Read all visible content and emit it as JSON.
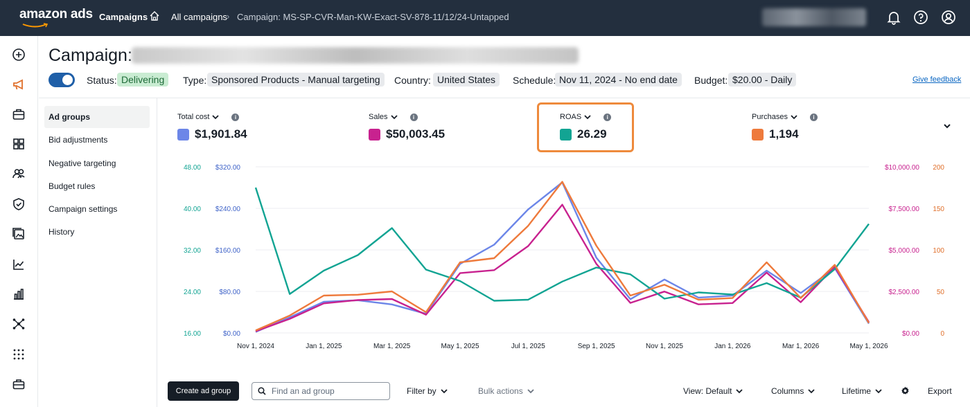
{
  "topbar": {
    "logo": "amazon ads",
    "nav_campaigns": "Campaigns",
    "nav_all": "All campaigns",
    "nav_separator": "›",
    "nav_current": "Campaign: MS-SP-CVR-Man-KW-Exact-SV-878-11/12/24-Untapped",
    "icons": [
      "bell-icon",
      "help-icon",
      "account-icon"
    ]
  },
  "header": {
    "title": "Campaign:",
    "status_label": "Status:",
    "status_value": "Delivering",
    "type_label": "Type:",
    "type_value": "Sponsored Products - Manual targeting",
    "country_label": "Country:",
    "country_value": "United States",
    "schedule_label": "Schedule:",
    "schedule_value": "Nov 11, 2024 - No end date",
    "budget_label": "Budget:",
    "budget_value": "$20.00 - Daily",
    "feedback": "Give feedback"
  },
  "subnav": {
    "items": [
      "Ad groups",
      "Bid adjustments",
      "Negative targeting",
      "Budget rules",
      "Campaign settings",
      "History"
    ]
  },
  "metrics": [
    {
      "label": "Total cost",
      "value": "$1,901.84",
      "color": "#6c86e8"
    },
    {
      "label": "Sales",
      "value": "$50,003.45",
      "color": "#c8228f"
    },
    {
      "label": "ROAS",
      "value": "26.29",
      "color": "#12a493"
    },
    {
      "label": "Purchases",
      "value": "1,194",
      "color": "#ee7a3c"
    }
  ],
  "chart_data": {
    "type": "line",
    "x": [
      "Nov 1, 2024",
      "Dec 1, 2024",
      "Jan 1, 2025",
      "Feb 1, 2025",
      "Mar 1, 2025",
      "Apr 1, 2025",
      "May 1, 2025",
      "Jun 1, 2025",
      "Jul 1, 2025",
      "Aug 1, 2025",
      "Sep 1, 2025",
      "Oct 1, 2025",
      "Nov 1, 2025",
      "Dec 1, 2025",
      "Jan 1, 2026",
      "Feb 1, 2026",
      "Mar 1, 2026",
      "Apr 1, 2026",
      "May 1, 2026"
    ],
    "x_tick_labels": [
      "Nov 1, 2024",
      "Jan 1, 2025",
      "Mar 1, 2025",
      "May 1, 2025",
      "Jul 1, 2025",
      "Sep 1, 2025",
      "Nov 1, 2025",
      "Jan 1, 2026",
      "Mar 1, 2026",
      "May 1, 2026"
    ],
    "axes": {
      "roas": {
        "ticks": [
          "16.00",
          "24.00",
          "32.00",
          "40.00",
          "48.00"
        ],
        "range": [
          16,
          48
        ],
        "color": "#12a493"
      },
      "cost": {
        "ticks": [
          "$0.00",
          "$80.00",
          "$160.00",
          "$240.00",
          "$320.00"
        ],
        "range": [
          0,
          320
        ],
        "color": "#3f63c8"
      },
      "sales": {
        "ticks": [
          "$0.00",
          "$2,500.00",
          "$5,000.00",
          "$7,500.00",
          "$10,000.00"
        ],
        "range": [
          0,
          10000
        ],
        "color": "#c8228f"
      },
      "purchases": {
        "ticks": [
          "0",
          "50",
          "100",
          "150",
          "200"
        ],
        "range": [
          0,
          200
        ],
        "color": "#e0702c"
      }
    },
    "series": [
      {
        "name": "Total cost",
        "axis": "cost",
        "color": "#6c86e8",
        "values": [
          2,
          30,
          60,
          63,
          55,
          37,
          133,
          170,
          238,
          290,
          145,
          65,
          103,
          68,
          72,
          120,
          77,
          125,
          18
        ]
      },
      {
        "name": "Sales",
        "axis": "sales",
        "color": "#c8228f",
        "values": [
          100,
          850,
          1780,
          1980,
          2040,
          1100,
          3600,
          3780,
          5230,
          7720,
          4160,
          1810,
          2490,
          1720,
          1800,
          3630,
          1850,
          3980,
          650
        ]
      },
      {
        "name": "ROAS",
        "axis": "roas",
        "color": "#12a493",
        "values": [
          44,
          23.5,
          28,
          31,
          36.2,
          28.2,
          26,
          22.2,
          22.4,
          25.9,
          28.6,
          27.3,
          22.6,
          23.8,
          23.4,
          25.6,
          22.8,
          28.3,
          37
        ]
      },
      {
        "name": "Purchases",
        "axis": "purchases",
        "color": "#ee7a3c",
        "values": [
          3,
          21,
          45,
          46,
          50,
          25,
          85,
          90,
          129,
          182,
          105,
          45,
          58,
          40,
          42,
          85,
          42,
          82,
          12
        ]
      }
    ]
  },
  "toolbar": {
    "create": "Create ad group",
    "search_placeholder": "Find an ad group",
    "filter": "Filter by",
    "bulk": "Bulk actions",
    "view": "View: Default",
    "columns": "Columns",
    "lifetime": "Lifetime",
    "export": "Export"
  }
}
